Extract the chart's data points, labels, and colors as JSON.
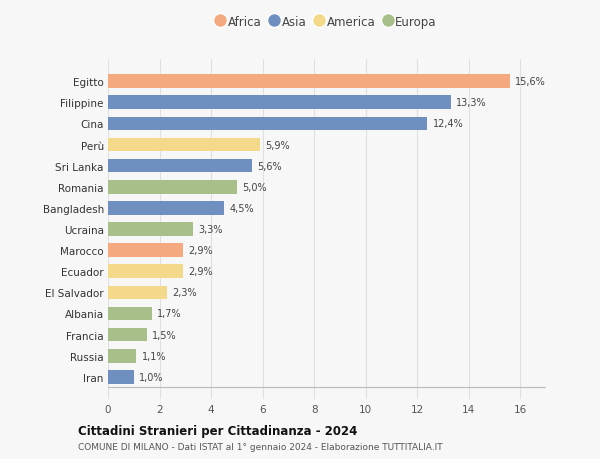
{
  "countries": [
    "Egitto",
    "Filippine",
    "Cina",
    "Perù",
    "Sri Lanka",
    "Romania",
    "Bangladesh",
    "Ucraina",
    "Marocco",
    "Ecuador",
    "El Salvador",
    "Albania",
    "Francia",
    "Russia",
    "Iran"
  ],
  "values": [
    15.6,
    13.3,
    12.4,
    5.9,
    5.6,
    5.0,
    4.5,
    3.3,
    2.9,
    2.9,
    2.3,
    1.7,
    1.5,
    1.1,
    1.0
  ],
  "labels": [
    "15,6%",
    "13,3%",
    "12,4%",
    "5,9%",
    "5,6%",
    "5,0%",
    "4,5%",
    "3,3%",
    "2,9%",
    "2,9%",
    "2,3%",
    "1,7%",
    "1,5%",
    "1,1%",
    "1,0%"
  ],
  "continents": [
    "Africa",
    "Asia",
    "Asia",
    "America",
    "Asia",
    "Europa",
    "Asia",
    "Europa",
    "Africa",
    "America",
    "America",
    "Europa",
    "Europa",
    "Europa",
    "Asia"
  ],
  "colors": {
    "Africa": "#F4A97F",
    "Asia": "#6E8FBF",
    "America": "#F5D98B",
    "Europa": "#A8BF8A"
  },
  "legend_order": [
    "Africa",
    "Asia",
    "America",
    "Europa"
  ],
  "title1": "Cittadini Stranieri per Cittadinanza - 2024",
  "title2": "COMUNE DI MILANO - Dati ISTAT al 1° gennaio 2024 - Elaborazione TUTTITALIA.IT",
  "xlim": [
    0,
    17
  ],
  "xticks": [
    0,
    2,
    4,
    6,
    8,
    10,
    12,
    14,
    16
  ],
  "background_color": "#f7f7f7",
  "grid_color": "#e0e0e0"
}
